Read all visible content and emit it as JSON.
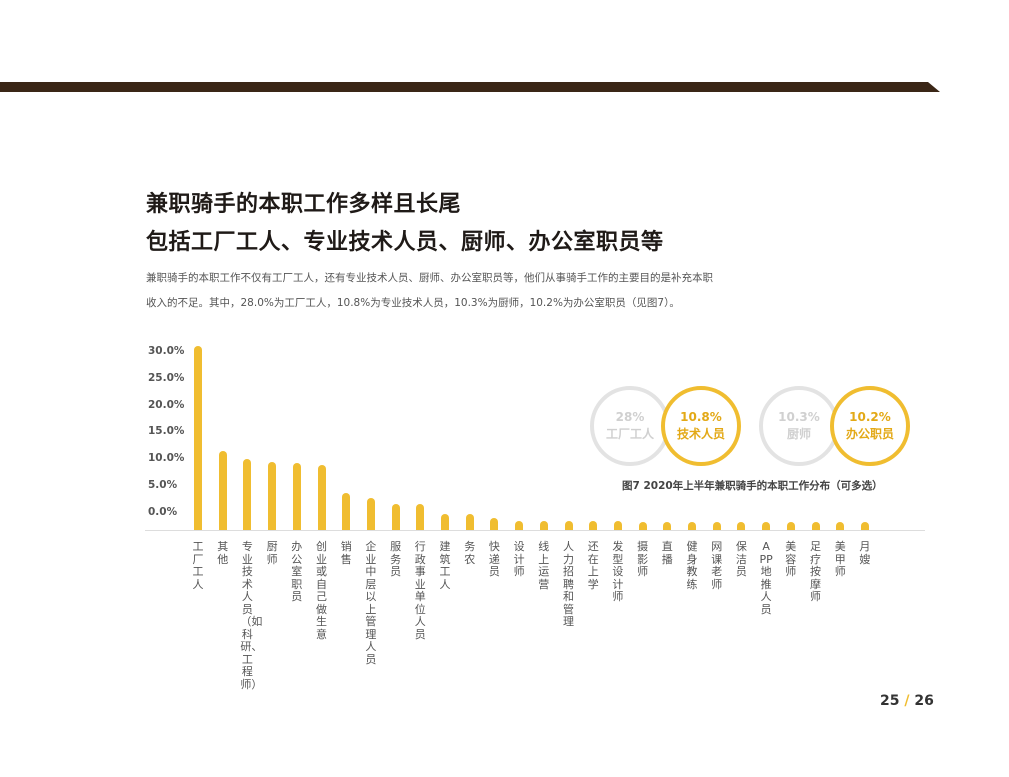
{
  "header": {
    "title_line1": "兼职骑手的本职工作多样且长尾",
    "title_line2": "包括工厂工人、专业技术人员、厨师、办公室职员等",
    "desc_line1": "兼职骑手的本职工作不仅有工厂工人，还有专业技术人员、厨师、办公室职员等，他们从事骑手工作的主要目的是补充本职",
    "desc_line2": "收入的不足。其中，28.0%为工厂工人，10.8%为专业技术人员，10.3%为厨师，10.2%为办公室职员（见图7）。"
  },
  "highlights": [
    {
      "value": "28%",
      "label": "工厂工人",
      "style": "grey"
    },
    {
      "value": "10.8%",
      "label": "技术人员",
      "style": "gold"
    },
    {
      "value": "10.3%",
      "label": "厨师",
      "style": "grey"
    },
    {
      "value": "10.2%",
      "label": "办公职员",
      "style": "gold"
    }
  ],
  "chart_data": {
    "type": "bar",
    "title": "图7  2020年上半年兼职骑手的本职工作分布（可多选）",
    "yticks": [
      "30.0%",
      "25.0%",
      "20.0%",
      "15.0%",
      "10.0%",
      "5.0%",
      "0.0%"
    ],
    "categories": [
      "工厂工人",
      "其他",
      "专业技术人员（如科研、工程师）",
      "厨师",
      "办公室职员",
      "创业或自己做生意",
      "销售",
      "企业中层以上管理人员",
      "服务员",
      "行政事业单位人员",
      "建筑工人",
      "务农",
      "快递员",
      "设计师",
      "线上运营",
      "人力招聘和管理",
      "还在上学",
      "发型设计师",
      "摄影师",
      "直播",
      "健身教练",
      "网课老师",
      "保洁员",
      "APP地推人员",
      "美容师",
      "足疗按摩师",
      "美甲师",
      "月嫂"
    ],
    "values": [
      28.0,
      12.0,
      10.8,
      10.3,
      10.2,
      9.9,
      5.6,
      4.8,
      4.0,
      3.9,
      2.5,
      2.4,
      1.9,
      1.4,
      1.4,
      1.3,
      1.3,
      1.3,
      1.0,
      1.0,
      1.0,
      1.0,
      1.0,
      0.8,
      0.8,
      0.8,
      0.8,
      0.8
    ],
    "unit": "%",
    "bar_color": "#f0bd30"
  },
  "page": {
    "current": "25",
    "separator": "/",
    "total": "26"
  }
}
